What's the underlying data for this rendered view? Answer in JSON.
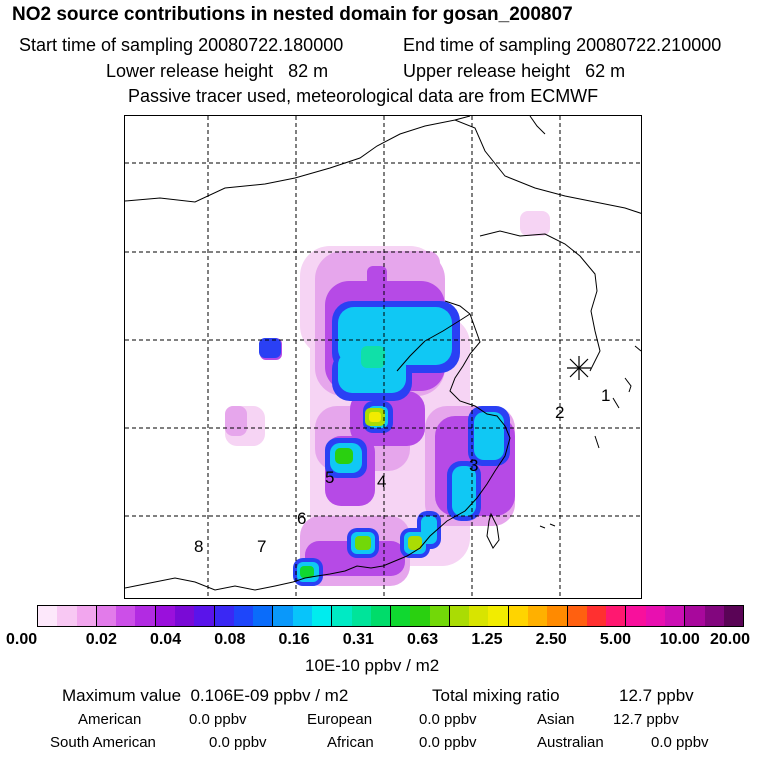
{
  "header": {
    "title": "NO2 source contributions in nested domain for gosan_200807",
    "start_label": "Start time of sampling 20080722.180000",
    "end_label": "End time of sampling 20080722.210000",
    "lower_label": "Lower release height   82 m",
    "upper_label": "Upper release height   62 m",
    "subtitle": "Passive tracer used, meteorological data are from ECMWF"
  },
  "map": {
    "region_labels": [
      "1",
      "2",
      "3",
      "4",
      "5",
      "6",
      "7",
      "8"
    ],
    "receptor_marker": "asterisk-icon"
  },
  "colorbar": {
    "ticks": [
      "0.00",
      "0.02",
      "0.04",
      "0.08",
      "0.16",
      "0.31",
      "0.63",
      "1.25",
      "2.50",
      "5.00",
      "10.00",
      "20.00"
    ],
    "colors": [
      "#fde8fb",
      "#f8c8f3",
      "#f2a6ee",
      "#e27bea",
      "#cc4fe8",
      "#b22be2",
      "#9a10dc",
      "#7a0ad6",
      "#5a14ea",
      "#3a28f4",
      "#1e46fa",
      "#0a6cfa",
      "#0a98fa",
      "#08c4fa",
      "#00ecee",
      "#00eac4",
      "#00e49a",
      "#00dc6a",
      "#10d830",
      "#2ad010",
      "#72d808",
      "#aadc04",
      "#d8e400",
      "#f2ec00",
      "#ffd400",
      "#ffb000",
      "#ff8a00",
      "#ff6010",
      "#ff3030",
      "#ff1870",
      "#f8109c",
      "#e810b0",
      "#cc10b4",
      "#a8089c",
      "#82067e",
      "#5a0456"
    ],
    "unit": "10E-10 ppbv / m2"
  },
  "stats": {
    "max_label": "Maximum value  0.106E-09 ppbv / m2",
    "total_label": "Total mixing ratio",
    "total_value": "12.7 ppbv",
    "regions": [
      {
        "name": "American",
        "value": "0.0 ppbv"
      },
      {
        "name": "European",
        "value": "0.0 ppbv"
      },
      {
        "name": "Asian",
        "value": "12.7 ppbv"
      },
      {
        "name": "South American",
        "value": "0.0 ppbv"
      },
      {
        "name": "African",
        "value": "0.0 ppbv"
      },
      {
        "name": "Australian",
        "value": "0.0 ppbv"
      }
    ]
  }
}
